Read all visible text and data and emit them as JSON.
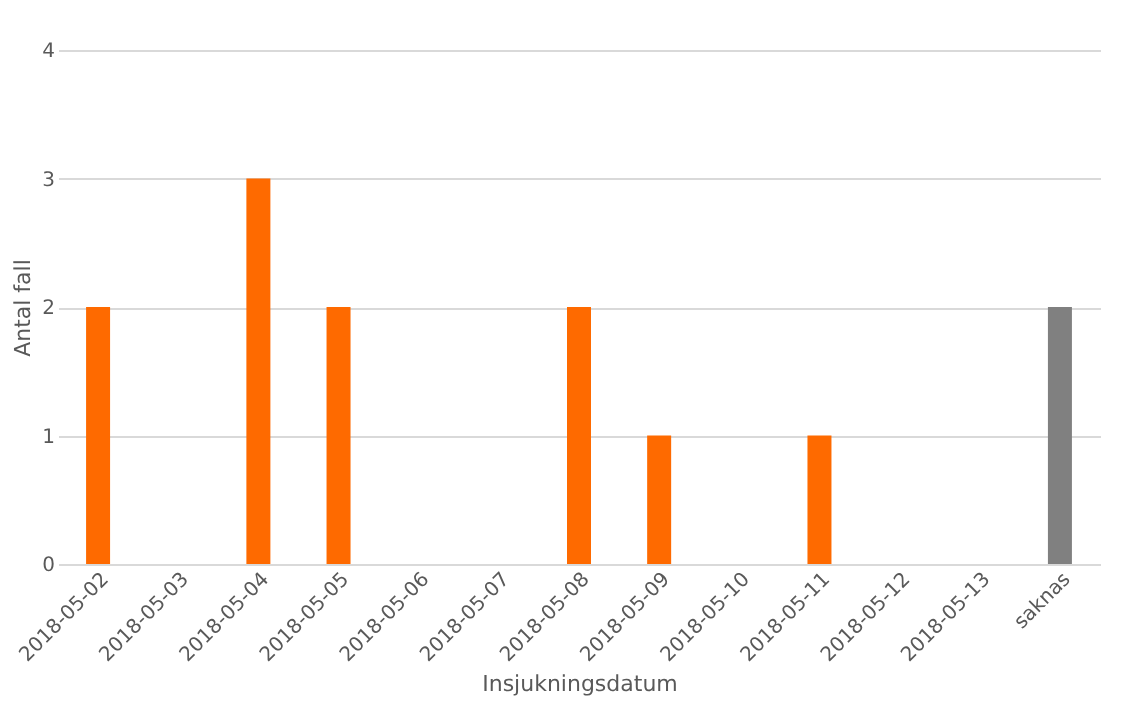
{
  "chart_data": {
    "type": "bar",
    "xlabel": "Insjukningsdatum",
    "ylabel": "Antal fall",
    "categories": [
      "2018-05-02",
      "2018-05-03",
      "2018-05-04",
      "2018-05-05",
      "2018-05-06",
      "2018-05-07",
      "2018-05-08",
      "2018-05-09",
      "2018-05-10",
      "2018-05-11",
      "2018-05-12",
      "2018-05-13",
      "saknas"
    ],
    "values": [
      2,
      0,
      3,
      2,
      0,
      0,
      2,
      1,
      0,
      1,
      0,
      0,
      2
    ],
    "colors": [
      "#fe6a00",
      "#fe6a00",
      "#fe6a00",
      "#fe6a00",
      "#fe6a00",
      "#fe6a00",
      "#fe6a00",
      "#fe6a00",
      "#fe6a00",
      "#fe6a00",
      "#fe6a00",
      "#fe6a00",
      "#808080"
    ],
    "ylim": [
      0,
      4
    ],
    "yticks": [
      0,
      1,
      2,
      3,
      4
    ],
    "grid": "y"
  }
}
